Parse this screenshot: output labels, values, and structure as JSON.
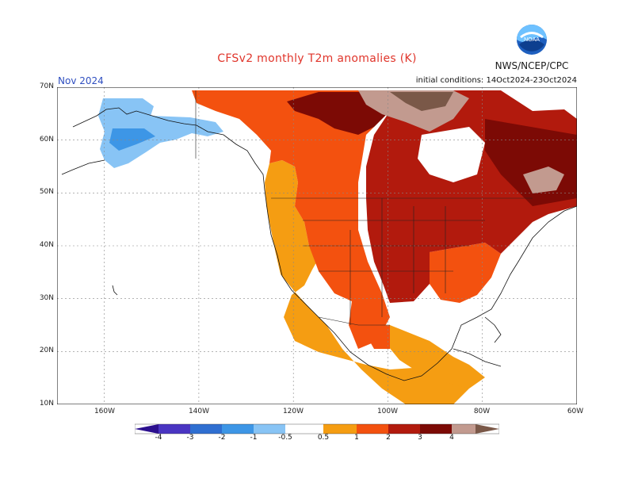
{
  "header": {
    "title": "CFSv2 monthly T2m anomalies (K)",
    "agency": "NWS/NCEP/CPC",
    "month": "Nov 2024",
    "initial_conditions": "initial conditions: 14Oct2024-23Oct2024"
  },
  "map": {
    "lat_labels": [
      "70N",
      "60N",
      "50N",
      "40N",
      "30N",
      "20N",
      "10N"
    ],
    "lon_labels": [
      "160W",
      "140W",
      "120W",
      "100W",
      "80W",
      "60W"
    ],
    "lon_range": [
      -170,
      -60
    ],
    "lat_range": [
      10,
      70
    ],
    "grid": true
  },
  "colorbar": {
    "labels": [
      "-4",
      "-3",
      "-2",
      "-1",
      "-0.5",
      "0.5",
      "1",
      "2",
      "3",
      "4"
    ],
    "colors": {
      "below_-4": "#2b0f8e",
      "-4_-3": "#4a35c2",
      "-3_-2": "#2f6fd1",
      "-2_-1": "#3d96e6",
      "-1_-0.5": "#88c4f5",
      "-0.5_0.5": "#ffffff",
      "0.5_1": "#f59d12",
      "1_2": "#f3510f",
      "2_3": "#b21a0d",
      "3_4": "#7c0a05",
      "4_5": "#c29a8f",
      "above_5": "#7a5848"
    }
  }
}
